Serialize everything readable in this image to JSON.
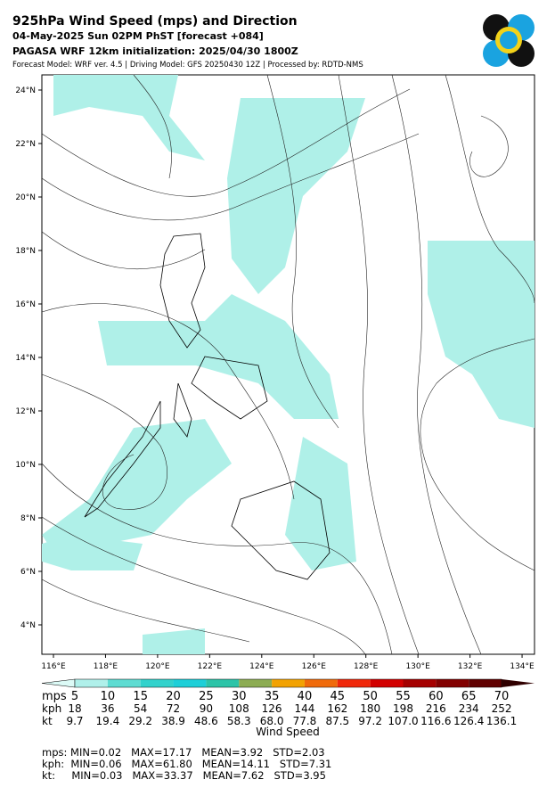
{
  "header": {
    "title": "925hPa Wind Speed (mps) and Direction",
    "line2": "04-May-2025 Sun 02PM PhST [forecast +084]",
    "line3": "PAGASA WRF 12km initialization: 2025/04/30 1800Z",
    "line4": "Forecast Model: WRF ver. 4.5 | Driving Model: GFS 20250430 12Z | Processed by: RDTD-NMS"
  },
  "map": {
    "lat_labels": [
      "24°N",
      "22°N",
      "20°N",
      "18°N",
      "16°N",
      "14°N",
      "12°N",
      "10°N",
      "8°N",
      "6°N",
      "4°N"
    ],
    "lon_labels": [
      "116°E",
      "118°E",
      "120°E",
      "122°E",
      "124°E",
      "126°E",
      "128°E",
      "130°E",
      "132°E",
      "134°E"
    ]
  },
  "colorbar": {
    "colors": [
      "#dcfaf6",
      "#b0f0ea",
      "#5edcd2",
      "#32d2cc",
      "#1ecfd8",
      "#2cc4a8",
      "#8cac52",
      "#f2a202",
      "#f06a0a",
      "#f0280a",
      "#d20000",
      "#a50000",
      "#820000",
      "#600000",
      "#300000"
    ],
    "row_names": [
      "mps",
      "kph",
      "kt"
    ],
    "rows": [
      [
        "5",
        "10",
        "15",
        "20",
        "25",
        "30",
        "35",
        "40",
        "45",
        "50",
        "55",
        "60",
        "65",
        "70"
      ],
      [
        "18",
        "36",
        "54",
        "72",
        "90",
        "108",
        "126",
        "144",
        "162",
        "180",
        "198",
        "216",
        "234",
        "252"
      ],
      [
        "9.7",
        "19.4",
        "29.2",
        "38.9",
        "48.6",
        "58.3",
        "68.0",
        "77.8",
        "87.5",
        "97.2",
        "107.0",
        "116.6",
        "126.4",
        "136.1"
      ]
    ],
    "label": "Wind Speed"
  },
  "stats": [
    "mps: MIN=0.02   MAX=17.17   MEAN=3.92   STD=2.03",
    "kph:  MIN=0.06   MAX=61.80   MEAN=14.11   STD=7.31",
    "kt:     MIN=0.03   MAX=33.37   MEAN=7.62   STD=3.95"
  ]
}
